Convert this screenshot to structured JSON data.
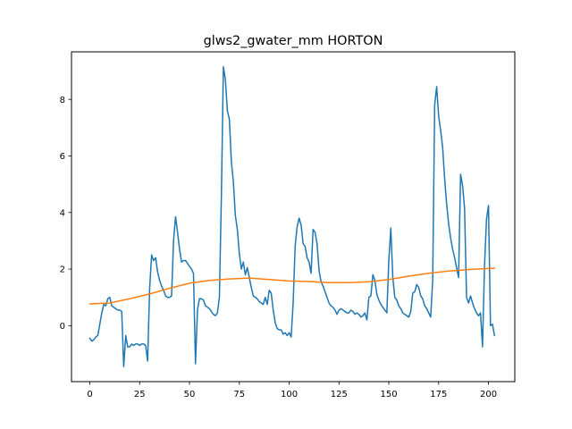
{
  "chart_data": {
    "type": "line",
    "title": "glws2_gwater_mm HORTON",
    "xlabel": "",
    "ylabel": "",
    "xlim": [
      -9.2,
      213.2
    ],
    "ylim": [
      -1.98,
      9.68
    ],
    "xticks": [
      0,
      25,
      50,
      75,
      100,
      125,
      150,
      175,
      200
    ],
    "yticks": [
      0,
      2,
      4,
      6,
      8
    ],
    "xtick_labels": [
      "0",
      "25",
      "50",
      "75",
      "100",
      "125",
      "150",
      "175",
      "200"
    ],
    "ytick_labels": [
      "0",
      "2",
      "4",
      "6",
      "8"
    ],
    "grid": false,
    "legend": "none",
    "series": [
      {
        "color": "#1f77b4",
        "points": [
          [
            0,
            -0.45
          ],
          [
            1,
            -0.55
          ],
          [
            2,
            -0.5
          ],
          [
            3,
            -0.4
          ],
          [
            4,
            -0.35
          ],
          [
            5,
            0.05
          ],
          [
            6,
            0.45
          ],
          [
            7,
            0.75
          ],
          [
            8,
            0.7
          ],
          [
            9,
            0.95
          ],
          [
            10,
            1.0
          ],
          [
            11,
            0.7
          ],
          [
            12,
            0.65
          ],
          [
            13,
            0.6
          ],
          [
            14,
            0.55
          ],
          [
            15,
            0.55
          ],
          [
            16,
            0.5
          ],
          [
            17,
            -1.45
          ],
          [
            18,
            -0.35
          ],
          [
            19,
            -0.75
          ],
          [
            20,
            -0.75
          ],
          [
            21,
            -0.65
          ],
          [
            22,
            -0.7
          ],
          [
            23,
            -0.65
          ],
          [
            24,
            -0.65
          ],
          [
            25,
            -0.7
          ],
          [
            26,
            -0.65
          ],
          [
            27,
            -0.65
          ],
          [
            28,
            -0.7
          ],
          [
            29,
            -1.25
          ],
          [
            30,
            1.3
          ],
          [
            31,
            2.5
          ],
          [
            32,
            2.3
          ],
          [
            33,
            2.4
          ],
          [
            34,
            1.9
          ],
          [
            35,
            1.6
          ],
          [
            36,
            1.4
          ],
          [
            37,
            1.25
          ],
          [
            38,
            1.05
          ],
          [
            39,
            1.0
          ],
          [
            40,
            1.0
          ],
          [
            41,
            1.05
          ],
          [
            42,
            3.0
          ],
          [
            43,
            3.85
          ],
          [
            44,
            3.3
          ],
          [
            45,
            2.7
          ],
          [
            46,
            2.25
          ],
          [
            47,
            2.3
          ],
          [
            48,
            2.3
          ],
          [
            49,
            2.2
          ],
          [
            50,
            2.1
          ],
          [
            51,
            2.0
          ],
          [
            52,
            1.85
          ],
          [
            53,
            -1.35
          ],
          [
            54,
            0.55
          ],
          [
            55,
            0.95
          ],
          [
            56,
            0.95
          ],
          [
            57,
            0.9
          ],
          [
            58,
            0.7
          ],
          [
            59,
            0.65
          ],
          [
            60,
            0.6
          ],
          [
            61,
            0.5
          ],
          [
            62,
            0.4
          ],
          [
            63,
            0.35
          ],
          [
            64,
            0.45
          ],
          [
            65,
            1.0
          ],
          [
            66,
            4.6
          ],
          [
            67,
            9.15
          ],
          [
            68,
            8.7
          ],
          [
            69,
            7.6
          ],
          [
            70,
            7.3
          ],
          [
            71,
            5.8
          ],
          [
            72,
            5.1
          ],
          [
            73,
            3.9
          ],
          [
            74,
            3.4
          ],
          [
            75,
            2.55
          ],
          [
            76,
            2.0
          ],
          [
            77,
            2.25
          ],
          [
            78,
            1.8
          ],
          [
            79,
            2.05
          ],
          [
            80,
            1.7
          ],
          [
            81,
            1.35
          ],
          [
            82,
            1.05
          ],
          [
            83,
            1.0
          ],
          [
            84,
            0.95
          ],
          [
            85,
            0.85
          ],
          [
            86,
            0.8
          ],
          [
            87,
            0.75
          ],
          [
            88,
            1.0
          ],
          [
            89,
            0.75
          ],
          [
            90,
            1.25
          ],
          [
            91,
            1.15
          ],
          [
            92,
            0.55
          ],
          [
            93,
            0.1
          ],
          [
            94,
            -0.1
          ],
          [
            95,
            -0.15
          ],
          [
            96,
            -0.15
          ],
          [
            97,
            -0.3
          ],
          [
            98,
            -0.25
          ],
          [
            99,
            -0.35
          ],
          [
            100,
            -0.25
          ],
          [
            101,
            -0.4
          ],
          [
            102,
            0.8
          ],
          [
            103,
            2.8
          ],
          [
            104,
            3.5
          ],
          [
            105,
            3.8
          ],
          [
            106,
            3.55
          ],
          [
            107,
            2.9
          ],
          [
            108,
            2.8
          ],
          [
            109,
            2.4
          ],
          [
            110,
            2.25
          ],
          [
            111,
            1.85
          ],
          [
            112,
            3.4
          ],
          [
            113,
            3.3
          ],
          [
            114,
            2.9
          ],
          [
            115,
            1.95
          ],
          [
            116,
            1.55
          ],
          [
            117,
            1.4
          ],
          [
            118,
            1.2
          ],
          [
            119,
            1.0
          ],
          [
            120,
            0.8
          ],
          [
            121,
            0.7
          ],
          [
            122,
            0.65
          ],
          [
            123,
            0.55
          ],
          [
            124,
            0.4
          ],
          [
            125,
            0.55
          ],
          [
            126,
            0.6
          ],
          [
            127,
            0.55
          ],
          [
            128,
            0.5
          ],
          [
            129,
            0.45
          ],
          [
            130,
            0.45
          ],
          [
            131,
            0.55
          ],
          [
            132,
            0.5
          ],
          [
            133,
            0.4
          ],
          [
            134,
            0.45
          ],
          [
            135,
            0.4
          ],
          [
            136,
            0.3
          ],
          [
            137,
            0.35
          ],
          [
            138,
            0.45
          ],
          [
            139,
            0.2
          ],
          [
            140,
            1.0
          ],
          [
            141,
            1.05
          ],
          [
            142,
            1.8
          ],
          [
            143,
            1.6
          ],
          [
            144,
            1.1
          ],
          [
            145,
            0.9
          ],
          [
            146,
            0.75
          ],
          [
            147,
            0.65
          ],
          [
            148,
            0.55
          ],
          [
            149,
            0.45
          ],
          [
            150,
            2.3
          ],
          [
            151,
            3.45
          ],
          [
            152,
            1.7
          ],
          [
            153,
            1.0
          ],
          [
            154,
            0.9
          ],
          [
            155,
            0.7
          ],
          [
            156,
            0.6
          ],
          [
            157,
            0.45
          ],
          [
            158,
            0.4
          ],
          [
            159,
            0.35
          ],
          [
            160,
            0.3
          ],
          [
            161,
            0.5
          ],
          [
            162,
            1.15
          ],
          [
            163,
            1.2
          ],
          [
            164,
            1.45
          ],
          [
            165,
            1.35
          ],
          [
            166,
            1.05
          ],
          [
            167,
            0.95
          ],
          [
            168,
            0.7
          ],
          [
            169,
            0.6
          ],
          [
            170,
            0.45
          ],
          [
            171,
            0.3
          ],
          [
            172,
            1.6
          ],
          [
            173,
            7.8
          ],
          [
            174,
            8.45
          ],
          [
            175,
            7.4
          ],
          [
            176,
            6.9
          ],
          [
            177,
            6.3
          ],
          [
            178,
            5.2
          ],
          [
            179,
            4.3
          ],
          [
            180,
            3.6
          ],
          [
            181,
            3.1
          ],
          [
            182,
            2.7
          ],
          [
            183,
            2.4
          ],
          [
            184,
            2.05
          ],
          [
            185,
            1.7
          ],
          [
            186,
            5.35
          ],
          [
            187,
            4.95
          ],
          [
            188,
            4.15
          ],
          [
            189,
            1.0
          ],
          [
            190,
            0.8
          ],
          [
            191,
            1.05
          ],
          [
            192,
            0.8
          ],
          [
            193,
            0.6
          ],
          [
            194,
            0.45
          ],
          [
            195,
            0.35
          ],
          [
            196,
            0.45
          ],
          [
            197,
            -0.75
          ],
          [
            198,
            2.1
          ],
          [
            199,
            3.75
          ],
          [
            200,
            4.25
          ],
          [
            201,
            0.0
          ],
          [
            202,
            0.05
          ],
          [
            203,
            -0.35
          ]
        ]
      },
      {
        "color": "#ff7f0e",
        "points": [
          [
            0,
            0.77
          ],
          [
            10,
            0.8
          ],
          [
            20,
            0.95
          ],
          [
            30,
            1.12
          ],
          [
            40,
            1.32
          ],
          [
            50,
            1.5
          ],
          [
            60,
            1.6
          ],
          [
            70,
            1.65
          ],
          [
            80,
            1.68
          ],
          [
            90,
            1.63
          ],
          [
            100,
            1.58
          ],
          [
            110,
            1.56
          ],
          [
            120,
            1.52
          ],
          [
            130,
            1.52
          ],
          [
            140,
            1.55
          ],
          [
            150,
            1.63
          ],
          [
            160,
            1.75
          ],
          [
            170,
            1.85
          ],
          [
            180,
            1.93
          ],
          [
            190,
            1.98
          ],
          [
            200,
            2.02
          ],
          [
            203,
            2.03
          ]
        ]
      }
    ]
  }
}
